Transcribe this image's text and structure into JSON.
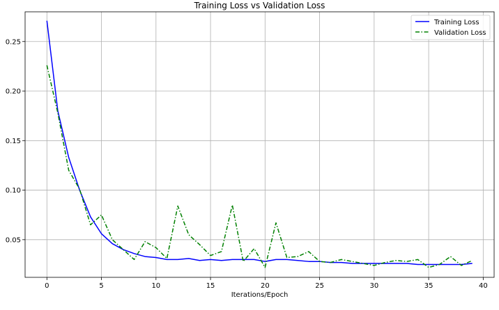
{
  "chart_data": {
    "type": "line",
    "title": "Training Loss vs Validation Loss",
    "xlabel": "Iterations/Epoch",
    "ylabel": "",
    "xlim": [
      -2,
      41
    ],
    "ylim": [
      0.012,
      0.28
    ],
    "xticks": [
      0,
      5,
      10,
      15,
      20,
      25,
      30,
      35,
      40
    ],
    "yticks": [
      0.05,
      0.1,
      0.15,
      0.2,
      0.25
    ],
    "ytick_labels": [
      "0.05",
      "0.10",
      "0.15",
      "0.20",
      "0.25"
    ],
    "grid": true,
    "legend_position": "top-right",
    "x": [
      0,
      1,
      2,
      3,
      4,
      5,
      6,
      7,
      8,
      9,
      10,
      11,
      12,
      13,
      14,
      15,
      16,
      17,
      18,
      19,
      20,
      21,
      22,
      23,
      24,
      25,
      26,
      27,
      28,
      29,
      30,
      31,
      32,
      33,
      34,
      35,
      36,
      37,
      38,
      39
    ],
    "series": [
      {
        "name": "Training Loss",
        "color": "#0000ff",
        "linestyle": "solid",
        "values": [
          0.271,
          0.18,
          0.133,
          0.1,
          0.073,
          0.056,
          0.046,
          0.04,
          0.036,
          0.033,
          0.032,
          0.03,
          0.03,
          0.031,
          0.029,
          0.03,
          0.029,
          0.03,
          0.03,
          0.03,
          0.028,
          0.03,
          0.03,
          0.029,
          0.028,
          0.028,
          0.027,
          0.027,
          0.026,
          0.026,
          0.026,
          0.026,
          0.026,
          0.026,
          0.025,
          0.025,
          0.025,
          0.025,
          0.025,
          0.026
        ]
      },
      {
        "name": "Validation Loss",
        "color": "#008000",
        "linestyle": "dashdot",
        "values": [
          0.226,
          0.178,
          0.12,
          0.101,
          0.065,
          0.075,
          0.05,
          0.04,
          0.03,
          0.048,
          0.042,
          0.031,
          0.084,
          0.055,
          0.045,
          0.034,
          0.038,
          0.085,
          0.028,
          0.041,
          0.022,
          0.067,
          0.032,
          0.033,
          0.038,
          0.028,
          0.027,
          0.03,
          0.028,
          0.026,
          0.024,
          0.027,
          0.029,
          0.028,
          0.03,
          0.022,
          0.025,
          0.033,
          0.024,
          0.029
        ]
      }
    ]
  }
}
